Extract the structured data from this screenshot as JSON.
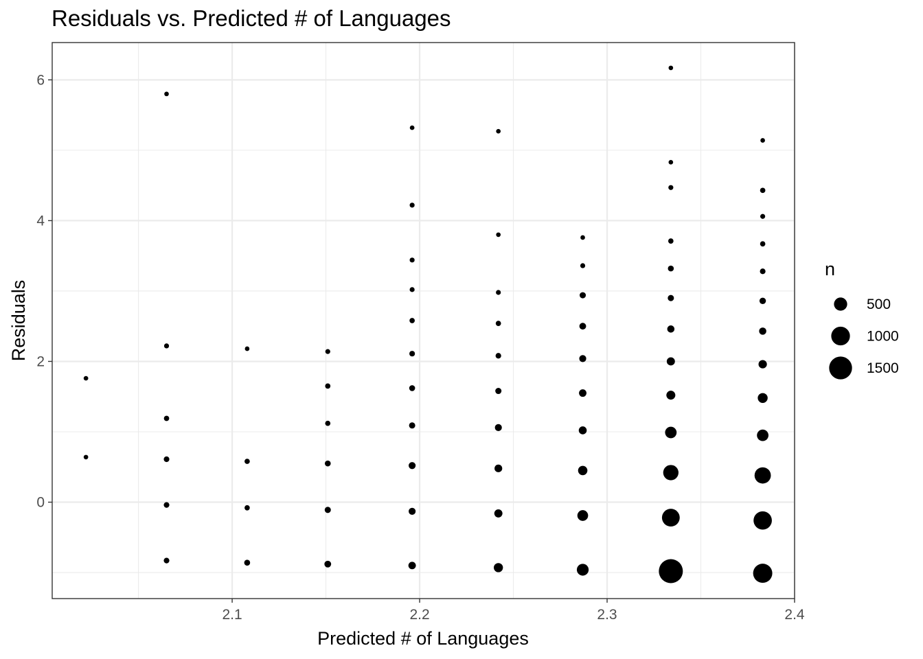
{
  "chart_data": {
    "type": "scatter",
    "title": "Residuals vs. Predicted # of Languages",
    "xlabel": "Predicted # of Languages",
    "ylabel": "Residuals",
    "xlim": [
      2.004,
      2.4
    ],
    "ylim": [
      -1.37,
      6.53
    ],
    "x_ticks": [
      2.1,
      2.2,
      2.3,
      2.4
    ],
    "x_minor": [
      2.05,
      2.15,
      2.25,
      2.35
    ],
    "y_ticks": [
      0,
      2,
      4,
      6
    ],
    "y_minor": [
      -1,
      1,
      3,
      5
    ],
    "grid": true,
    "legend": {
      "title": "n",
      "position": "right",
      "entries": [
        {
          "label": "500",
          "n": 500
        },
        {
          "label": "1000",
          "n": 1000
        },
        {
          "label": "1500",
          "n": 1500
        }
      ]
    },
    "points": [
      {
        "x": 2.022,
        "y": 1.76,
        "n": 60
      },
      {
        "x": 2.022,
        "y": 0.64,
        "n": 60
      },
      {
        "x": 2.065,
        "y": 5.8,
        "n": 60
      },
      {
        "x": 2.065,
        "y": 2.22,
        "n": 70
      },
      {
        "x": 2.065,
        "y": 1.19,
        "n": 80
      },
      {
        "x": 2.065,
        "y": 0.61,
        "n": 90
      },
      {
        "x": 2.065,
        "y": -0.04,
        "n": 90
      },
      {
        "x": 2.065,
        "y": -0.83,
        "n": 90
      },
      {
        "x": 2.108,
        "y": 2.18,
        "n": 60
      },
      {
        "x": 2.108,
        "y": 0.58,
        "n": 80
      },
      {
        "x": 2.108,
        "y": -0.08,
        "n": 80
      },
      {
        "x": 2.108,
        "y": -0.86,
        "n": 100
      },
      {
        "x": 2.151,
        "y": 2.14,
        "n": 70
      },
      {
        "x": 2.151,
        "y": 1.65,
        "n": 80
      },
      {
        "x": 2.151,
        "y": 1.12,
        "n": 80
      },
      {
        "x": 2.151,
        "y": 0.55,
        "n": 100
      },
      {
        "x": 2.151,
        "y": -0.11,
        "n": 110
      },
      {
        "x": 2.151,
        "y": -0.88,
        "n": 130
      },
      {
        "x": 2.196,
        "y": 5.32,
        "n": 60
      },
      {
        "x": 2.196,
        "y": 4.22,
        "n": 70
      },
      {
        "x": 2.196,
        "y": 3.44,
        "n": 70
      },
      {
        "x": 2.196,
        "y": 3.02,
        "n": 70
      },
      {
        "x": 2.196,
        "y": 2.58,
        "n": 80
      },
      {
        "x": 2.196,
        "y": 2.11,
        "n": 90
      },
      {
        "x": 2.196,
        "y": 1.62,
        "n": 100
      },
      {
        "x": 2.196,
        "y": 1.09,
        "n": 110
      },
      {
        "x": 2.196,
        "y": 0.52,
        "n": 140
      },
      {
        "x": 2.196,
        "y": -0.13,
        "n": 140
      },
      {
        "x": 2.196,
        "y": -0.9,
        "n": 160
      },
      {
        "x": 2.242,
        "y": 5.27,
        "n": 60
      },
      {
        "x": 2.242,
        "y": 3.8,
        "n": 60
      },
      {
        "x": 2.242,
        "y": 2.98,
        "n": 70
      },
      {
        "x": 2.242,
        "y": 2.54,
        "n": 80
      },
      {
        "x": 2.242,
        "y": 2.08,
        "n": 90
      },
      {
        "x": 2.242,
        "y": 1.58,
        "n": 110
      },
      {
        "x": 2.242,
        "y": 1.06,
        "n": 140
      },
      {
        "x": 2.242,
        "y": 0.48,
        "n": 170
      },
      {
        "x": 2.242,
        "y": -0.16,
        "n": 190
      },
      {
        "x": 2.242,
        "y": -0.93,
        "n": 240
      },
      {
        "x": 2.287,
        "y": 3.76,
        "n": 60
      },
      {
        "x": 2.287,
        "y": 3.36,
        "n": 70
      },
      {
        "x": 2.287,
        "y": 2.94,
        "n": 110
      },
      {
        "x": 2.287,
        "y": 2.5,
        "n": 130
      },
      {
        "x": 2.287,
        "y": 2.04,
        "n": 140
      },
      {
        "x": 2.287,
        "y": 1.55,
        "n": 160
      },
      {
        "x": 2.287,
        "y": 1.02,
        "n": 180
      },
      {
        "x": 2.287,
        "y": 0.45,
        "n": 250
      },
      {
        "x": 2.287,
        "y": -0.19,
        "n": 330
      },
      {
        "x": 2.287,
        "y": -0.96,
        "n": 400
      },
      {
        "x": 2.334,
        "y": 6.17,
        "n": 60
      },
      {
        "x": 2.334,
        "y": 4.83,
        "n": 60
      },
      {
        "x": 2.334,
        "y": 4.47,
        "n": 70
      },
      {
        "x": 2.334,
        "y": 3.71,
        "n": 80
      },
      {
        "x": 2.334,
        "y": 3.32,
        "n": 100
      },
      {
        "x": 2.334,
        "y": 2.9,
        "n": 110
      },
      {
        "x": 2.334,
        "y": 2.46,
        "n": 150
      },
      {
        "x": 2.334,
        "y": 2.0,
        "n": 190
      },
      {
        "x": 2.334,
        "y": 1.52,
        "n": 230
      },
      {
        "x": 2.334,
        "y": 0.99,
        "n": 380
      },
      {
        "x": 2.334,
        "y": 0.42,
        "n": 670
      },
      {
        "x": 2.334,
        "y": -0.22,
        "n": 900
      },
      {
        "x": 2.334,
        "y": -0.98,
        "n": 1650
      },
      {
        "x": 2.383,
        "y": 5.14,
        "n": 60
      },
      {
        "x": 2.383,
        "y": 4.43,
        "n": 80
      },
      {
        "x": 2.383,
        "y": 4.06,
        "n": 70
      },
      {
        "x": 2.383,
        "y": 3.67,
        "n": 80
      },
      {
        "x": 2.383,
        "y": 3.28,
        "n": 90
      },
      {
        "x": 2.383,
        "y": 2.86,
        "n": 120
      },
      {
        "x": 2.383,
        "y": 2.43,
        "n": 150
      },
      {
        "x": 2.383,
        "y": 1.96,
        "n": 200
      },
      {
        "x": 2.383,
        "y": 1.48,
        "n": 280
      },
      {
        "x": 2.383,
        "y": 0.95,
        "n": 380
      },
      {
        "x": 2.383,
        "y": 0.38,
        "n": 760
      },
      {
        "x": 2.383,
        "y": -0.26,
        "n": 960
      },
      {
        "x": 2.383,
        "y": -1.01,
        "n": 1050
      }
    ]
  }
}
